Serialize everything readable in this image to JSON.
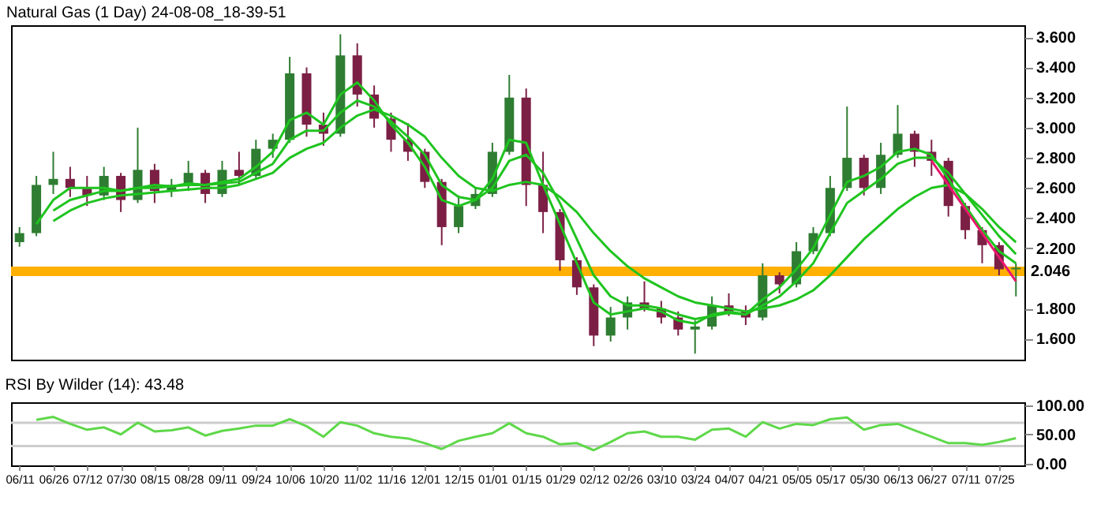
{
  "chart_data": [
    {
      "type": "candlestick",
      "title": "Natural Gas (1 Day) 24-08-08_18-39-51",
      "tick_labels": "y",
      "ohlc": [
        [
          2.24,
          2.34,
          2.21,
          2.3
        ],
        [
          2.3,
          2.68,
          2.28,
          2.62
        ],
        [
          2.62,
          2.84,
          2.56,
          2.66
        ],
        [
          2.66,
          2.74,
          2.54,
          2.6
        ],
        [
          2.6,
          2.68,
          2.48,
          2.55
        ],
        [
          2.55,
          2.74,
          2.52,
          2.68
        ],
        [
          2.68,
          2.7,
          2.44,
          2.52
        ],
        [
          2.52,
          3.0,
          2.5,
          2.72
        ],
        [
          2.72,
          2.76,
          2.5,
          2.58
        ],
        [
          2.58,
          2.66,
          2.54,
          2.62
        ],
        [
          2.62,
          2.78,
          2.58,
          2.7
        ],
        [
          2.7,
          2.72,
          2.5,
          2.56
        ],
        [
          2.56,
          2.78,
          2.54,
          2.72
        ],
        [
          2.72,
          2.84,
          2.62,
          2.68
        ],
        [
          2.68,
          2.92,
          2.66,
          2.86
        ],
        [
          2.86,
          2.96,
          2.8,
          2.92
        ],
        [
          2.92,
          3.47,
          2.9,
          3.36
        ],
        [
          3.36,
          3.4,
          2.94,
          3.02
        ],
        [
          3.02,
          3.1,
          2.88,
          2.96
        ],
        [
          2.96,
          3.62,
          2.94,
          3.48
        ],
        [
          3.48,
          3.56,
          3.14,
          3.22
        ],
        [
          3.22,
          3.28,
          3.0,
          3.06
        ],
        [
          3.06,
          3.1,
          2.84,
          2.92
        ],
        [
          2.92,
          3.03,
          2.78,
          2.84
        ],
        [
          2.84,
          2.86,
          2.6,
          2.64
        ],
        [
          2.64,
          2.66,
          2.22,
          2.34
        ],
        [
          2.34,
          2.55,
          2.3,
          2.48
        ],
        [
          2.48,
          2.6,
          2.46,
          2.56
        ],
        [
          2.56,
          2.9,
          2.54,
          2.84
        ],
        [
          2.84,
          3.35,
          2.82,
          3.2
        ],
        [
          3.2,
          3.26,
          2.48,
          2.62
        ],
        [
          2.62,
          2.84,
          2.3,
          2.44
        ],
        [
          2.44,
          2.46,
          2.05,
          2.12
        ],
        [
          2.12,
          2.14,
          1.89,
          1.94
        ],
        [
          1.94,
          1.96,
          1.55,
          1.62
        ],
        [
          1.62,
          1.81,
          1.58,
          1.74
        ],
        [
          1.74,
          1.88,
          1.66,
          1.84
        ],
        [
          1.84,
          1.98,
          1.78,
          1.8
        ],
        [
          1.8,
          1.85,
          1.7,
          1.74
        ],
        [
          1.74,
          1.78,
          1.62,
          1.66
        ],
        [
          1.66,
          1.72,
          1.5,
          1.68
        ],
        [
          1.68,
          1.88,
          1.66,
          1.82
        ],
        [
          1.82,
          1.9,
          1.75,
          1.78
        ],
        [
          1.78,
          1.82,
          1.69,
          1.74
        ],
        [
          1.74,
          2.1,
          1.72,
          2.02
        ],
        [
          2.02,
          2.04,
          1.9,
          1.96
        ],
        [
          1.96,
          2.24,
          1.94,
          2.18
        ],
        [
          2.18,
          2.34,
          2.16,
          2.3
        ],
        [
          2.3,
          2.68,
          2.28,
          2.6
        ],
        [
          2.6,
          3.14,
          2.58,
          2.8
        ],
        [
          2.8,
          2.82,
          2.55,
          2.6
        ],
        [
          2.6,
          2.9,
          2.56,
          2.82
        ],
        [
          2.82,
          3.15,
          2.8,
          2.96
        ],
        [
          2.96,
          2.98,
          2.74,
          2.84
        ],
        [
          2.84,
          2.92,
          2.68,
          2.78
        ],
        [
          2.78,
          2.8,
          2.41,
          2.48
        ],
        [
          2.48,
          2.5,
          2.26,
          2.32
        ],
        [
          2.32,
          2.34,
          2.1,
          2.22
        ],
        [
          2.22,
          2.24,
          2.02,
          2.06
        ],
        [
          2.06,
          2.1,
          1.88,
          2.07
        ]
      ],
      "colors": [
        "#2e7d32",
        "#2e7d32",
        "#2e7d32",
        "#7b1f45",
        "#7b1f45",
        "#2e7d32",
        "#7b1f45",
        "#2e7d32",
        "#7b1f45",
        "#2e7d32",
        "#2e7d32",
        "#7b1f45",
        "#2e7d32",
        "#7b1f45",
        "#2e7d32",
        "#2e7d32",
        "#2e7d32",
        "#7b1f45",
        "#7b1f45",
        "#2e7d32",
        "#7b1f45",
        "#7b1f45",
        "#7b1f45",
        "#7b1f45",
        "#7b1f45",
        "#7b1f45",
        "#2e7d32",
        "#2e7d32",
        "#2e7d32",
        "#2e7d32",
        "#7b1f45",
        "#7b1f45",
        "#7b1f45",
        "#7b1f45",
        "#7b1f45",
        "#2e7d32",
        "#2e7d32",
        "#7b1f45",
        "#7b1f45",
        "#7b1f45",
        "#2e7d32",
        "#2e7d32",
        "#7b1f45",
        "#7b1f45",
        "#2e7d32",
        "#7b1f45",
        "#2e7d32",
        "#2e7d32",
        "#2e7d32",
        "#2e7d32",
        "#7b1f45",
        "#2e7d32",
        "#2e7d32",
        "#7b1f45",
        "#7b1f45",
        "#7b1f45",
        "#7b1f45",
        "#7b1f45",
        "#7b1f45",
        "#2e7d32"
      ],
      "series": [
        {
          "type": "line",
          "color": "#1fc41f",
          "values": [
            null,
            2.36,
            2.52,
            2.6,
            2.6,
            2.6,
            2.58,
            2.6,
            2.62,
            2.61,
            2.63,
            2.62,
            2.64,
            2.66,
            2.74,
            2.84,
            3.05,
            3.1,
            3.02,
            3.22,
            3.3,
            3.18,
            3.02,
            2.9,
            2.74,
            2.52,
            2.48,
            2.52,
            2.66,
            2.92,
            2.9,
            2.62,
            2.36,
            2.1,
            1.84,
            1.76,
            1.78,
            1.8,
            1.78,
            1.72,
            1.7,
            1.76,
            1.78,
            1.76,
            1.86,
            1.94,
            2.06,
            2.2,
            2.42,
            2.64,
            2.68,
            2.74,
            2.84,
            2.86,
            2.82,
            2.66,
            2.48,
            2.32,
            2.18,
            2.1
          ]
        },
        {
          "type": "line",
          "color": "#1fc41f",
          "values": [
            null,
            null,
            2.45,
            2.52,
            2.55,
            2.58,
            2.58,
            2.6,
            2.6,
            2.61,
            2.62,
            2.62,
            2.63,
            2.64,
            2.7,
            2.76,
            2.92,
            2.98,
            2.98,
            3.1,
            3.18,
            3.14,
            3.04,
            2.94,
            2.82,
            2.62,
            2.54,
            2.52,
            2.6,
            2.78,
            2.82,
            2.7,
            2.5,
            2.26,
            2.02,
            1.88,
            1.82,
            1.82,
            1.8,
            1.76,
            1.73,
            1.75,
            1.77,
            1.76,
            1.82,
            1.88,
            1.98,
            2.1,
            2.3,
            2.5,
            2.58,
            2.66,
            2.76,
            2.8,
            2.8,
            2.7,
            2.56,
            2.42,
            2.28,
            2.16
          ]
        },
        {
          "type": "line",
          "color": "#1fc41f",
          "values": [
            null,
            null,
            2.38,
            2.45,
            2.5,
            2.53,
            2.55,
            2.56,
            2.57,
            2.58,
            2.59,
            2.6,
            2.6,
            2.62,
            2.66,
            2.7,
            2.8,
            2.86,
            2.9,
            3.0,
            3.08,
            3.12,
            3.08,
            3.02,
            2.94,
            2.8,
            2.68,
            2.6,
            2.58,
            2.62,
            2.64,
            2.62,
            2.54,
            2.44,
            2.3,
            2.18,
            2.08,
            2.0,
            1.94,
            1.88,
            1.84,
            1.82,
            1.8,
            1.78,
            1.8,
            1.82,
            1.86,
            1.92,
            2.02,
            2.14,
            2.26,
            2.36,
            2.46,
            2.54,
            2.6,
            2.62,
            2.56,
            2.46,
            2.34,
            2.24
          ]
        },
        {
          "type": "line",
          "color": "#e8186e",
          "values": [
            null,
            null,
            null,
            null,
            null,
            null,
            null,
            null,
            null,
            null,
            null,
            null,
            null,
            null,
            null,
            null,
            null,
            null,
            null,
            null,
            null,
            null,
            null,
            null,
            null,
            null,
            null,
            null,
            null,
            null,
            null,
            null,
            null,
            null,
            null,
            null,
            null,
            null,
            null,
            null,
            null,
            null,
            null,
            null,
            null,
            null,
            null,
            null,
            null,
            null,
            null,
            null,
            null,
            null,
            2.78,
            2.62,
            2.46,
            2.3,
            2.14,
            1.98
          ]
        }
      ],
      "ylim": [
        1.46,
        3.68
      ],
      "yticks": [
        {
          "value": 1.6,
          "label": "1.600"
        },
        {
          "value": 1.8,
          "label": "1.800"
        },
        {
          "value": 2.2,
          "label": "2.200"
        },
        {
          "value": 2.4,
          "label": "2.400"
        },
        {
          "value": 2.6,
          "label": "2.600"
        },
        {
          "value": 2.8,
          "label": "2.800"
        },
        {
          "value": 3.0,
          "label": "3.000"
        },
        {
          "value": 3.2,
          "label": "3.200"
        },
        {
          "value": 3.4,
          "label": "3.400"
        },
        {
          "value": 3.6,
          "label": "3.600"
        }
      ],
      "ref_lines": [
        {
          "axis": "y",
          "value": 2.046,
          "label": "2.046",
          "color": "#ffb000"
        }
      ]
    },
    {
      "type": "line",
      "title": "RSI By Wilder (14): 43.48",
      "categories": [
        "06/11",
        null,
        "06/26",
        null,
        "07/12",
        null,
        "07/30",
        null,
        "08/15",
        null,
        "08/28",
        null,
        "09/11",
        null,
        "09/24",
        null,
        "10/06",
        null,
        "10/20",
        null,
        "11/02",
        null,
        "11/16",
        null,
        "12/01",
        null,
        "12/15",
        null,
        "01/01",
        null,
        "01/15",
        null,
        "01/29",
        null,
        "02/12",
        null,
        "02/26",
        null,
        "03/10",
        null,
        "03/24",
        null,
        "04/07",
        null,
        "04/21",
        null,
        "05/05",
        null,
        "05/17",
        null,
        "05/30",
        null,
        "06/13",
        null,
        "06/27",
        null,
        "07/11",
        null,
        "07/25",
        null
      ],
      "series": [
        {
          "color": "#5fd84a",
          "values": [
            null,
            75,
            80,
            68,
            58,
            62,
            50,
            70,
            55,
            57,
            62,
            48,
            56,
            60,
            65,
            65,
            76,
            64,
            46,
            71,
            65,
            52,
            46,
            43,
            35,
            25,
            39,
            46,
            52,
            69,
            52,
            46,
            33,
            35,
            23,
            37,
            52,
            55,
            46,
            46,
            41,
            58,
            60,
            46,
            71,
            60,
            68,
            66,
            76,
            79,
            58,
            66,
            68,
            57,
            46,
            35,
            35,
            32,
            37,
            43.48
          ]
        }
      ],
      "ylim": [
        -3,
        105
      ],
      "yticks": [
        {
          "value": 0,
          "label": "0.00"
        },
        {
          "value": 50,
          "label": "50.00"
        },
        {
          "value": 100,
          "label": "100.00"
        }
      ],
      "ref_lines": [
        {
          "axis": "y",
          "value": 30,
          "color": "#cccccc"
        },
        {
          "axis": "y",
          "value": 70,
          "color": "#cccccc"
        }
      ]
    }
  ]
}
